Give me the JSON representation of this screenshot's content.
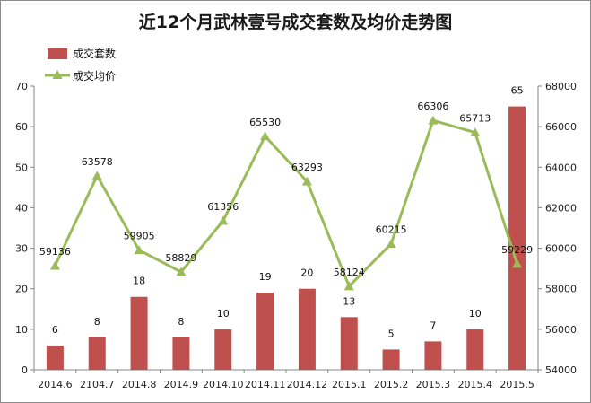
{
  "chart_data": {
    "type": "bar+line",
    "title": "近12个月武林壹号成交套数及均价走势图",
    "categories": [
      "2014.6",
      "2104.7",
      "2014.8",
      "2014.9",
      "2014.10",
      "2014.11",
      "2014.12",
      "2015.1",
      "2015.2",
      "2015.3",
      "2015.4",
      "2015.5"
    ],
    "series": [
      {
        "name": "成交套数",
        "type": "bar",
        "axis": "left",
        "color": "#c0504d",
        "values": [
          6,
          8,
          18,
          8,
          10,
          19,
          20,
          13,
          5,
          7,
          10,
          65
        ]
      },
      {
        "name": "成交均价",
        "type": "line",
        "axis": "right",
        "color": "#9bbb59",
        "marker": "triangle",
        "values": [
          59136,
          63578,
          59905,
          58829,
          61356,
          65530,
          63293,
          58124,
          60215,
          66306,
          65713,
          59229
        ]
      }
    ],
    "y_left": {
      "min": 0,
      "max": 70,
      "step": 10,
      "ticks": [
        "0",
        "10",
        "20",
        "30",
        "40",
        "50",
        "60",
        "70"
      ]
    },
    "y_right": {
      "min": 54000,
      "max": 68000,
      "step": 2000,
      "ticks": [
        "54000",
        "56000",
        "58000",
        "60000",
        "62000",
        "64000",
        "66000",
        "68000"
      ]
    },
    "legend": "top-left",
    "grid": false
  }
}
